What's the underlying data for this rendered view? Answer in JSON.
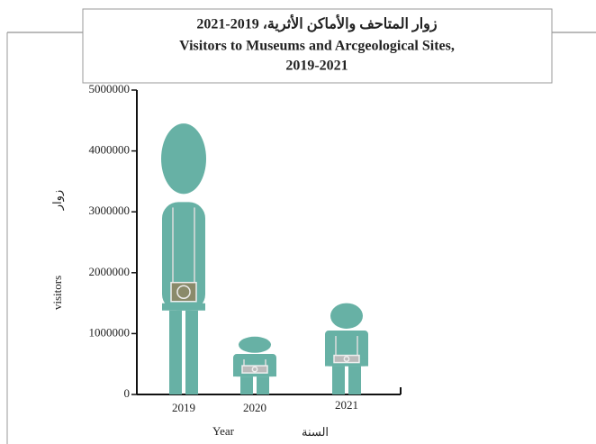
{
  "chart_data": {
    "type": "pictograph",
    "title": [
      "زوار المتاحف والأماكن الأثرية، 2019-2021",
      "Visitors to Museums and Arcgeological Sites,",
      "2019-2021"
    ],
    "ylabel": "visitors",
    "ylabel_ar": "زوار",
    "xlabel": "Year",
    "xlabel_ar": "السنة",
    "categories": [
      "2019",
      "2020",
      "2021"
    ],
    "values": [
      4450000,
      950000,
      1500000
    ],
    "color": "#67b1a5",
    "ylim": [
      0,
      5000000
    ],
    "yticks": [
      0,
      1000000,
      2000000,
      3000000,
      4000000,
      5000000
    ]
  }
}
